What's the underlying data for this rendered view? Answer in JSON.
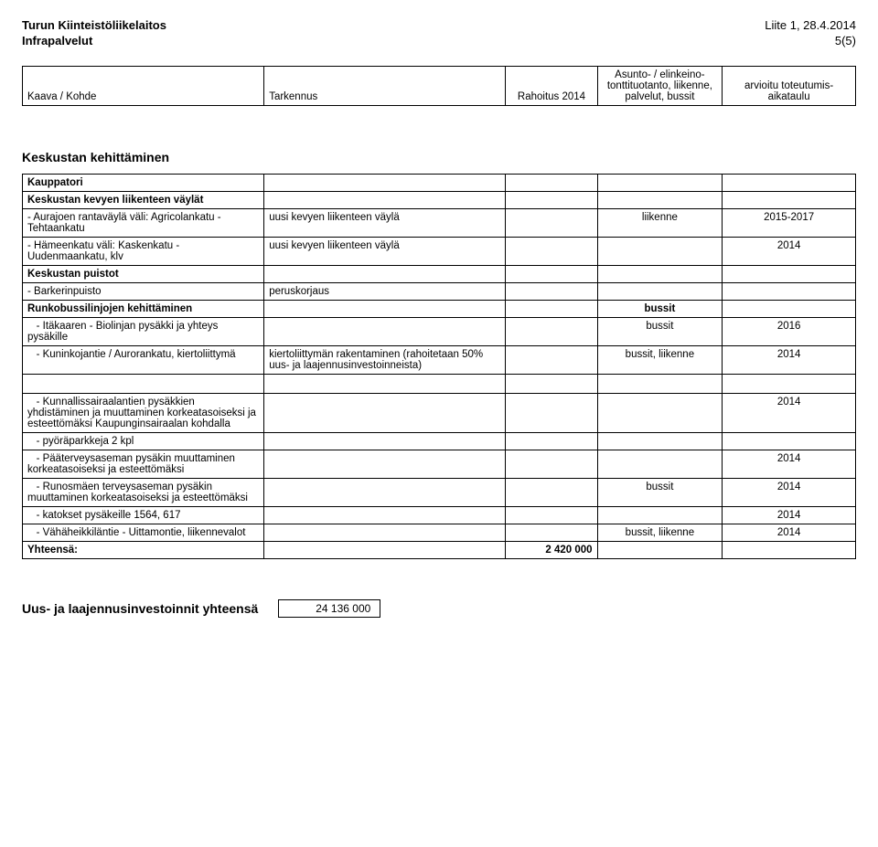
{
  "header": {
    "org1": "Turun Kiinteistöliikelaitos",
    "org2": "Infrapalvelut",
    "attachment": "Liite 1, 28.4.2014",
    "page": "5(5)"
  },
  "table_head": {
    "c1": "Kaava / Kohde",
    "c2": "Tarkennus",
    "c3": "Rahoitus 2014",
    "c4": "Asunto- / elinkeino-tonttituotanto, liikenne, palvelut, bussit",
    "c5": "arvioitu toteutumis-aikataulu"
  },
  "section1_title": "Keskustan kehittäminen",
  "rows": {
    "kauppatori": "Kauppatori",
    "kevyen_vaylat": "Keskustan kevyen liikenteen väylät",
    "aurajoen": "- Aurajoen rantaväylä väli: Agricolankatu - Tehtaankatu",
    "aurajoen_t": "uusi kevyen liikenteen väylä",
    "aurajoen_a": "liikenne",
    "aurajoen_v": "2015-2017",
    "hameenkatu": "- Hämeenkatu väli: Kaskenkatu - Uudenmaankatu, klv",
    "hameenkatu_t": "uusi kevyen liikenteen väylä",
    "hameenkatu_v": "2014",
    "puistot": "Keskustan puistot",
    "barker": "- Barkerinpuisto",
    "barker_t": "peruskorjaus",
    "runkobussi": "Runkobussilinjojen kehittäminen",
    "runkobussi_a": "bussit",
    "itakaaren": "   - Itäkaaren - Biolinjan pysäkki ja yhteys pysäkille",
    "itakaaren_a": "bussit",
    "itakaaren_v": "2016",
    "kuninkojantie": "   - Kuninkojantie / Aurorankatu, kiertoliittymä",
    "kuninkojantie_t": "kiertoliittymän rakentaminen (rahoitetaan 50% uus- ja laajennusinvestoinneista)",
    "kuninkojantie_a": "bussit, liikenne",
    "kuninkojantie_v": "2014",
    "kunnallis": "   - Kunnallissairaalantien pysäkkien yhdistäminen ja muuttaminen korkeatasoiseksi ja esteettömäksi Kaupunginsairaalan kohdalla",
    "kunnallis_v": "2014",
    "pyora": "   - pyöräparkkeja 2 kpl",
    "paaterveys": "   - Pääterveysaseman pysäkin muuttaminen korkeatasoiseksi ja esteettömäksi",
    "paaterveys_v": "2014",
    "runosmaen": "   - Runosmäen terveysaseman pysäkin muuttaminen korkeatasoiseksi ja esteettömäksi",
    "runosmaen_a": "bussit",
    "runosmaen_v": "2014",
    "katokset": "   - katokset pysäkeille 1564, 617",
    "katokset_v": "2014",
    "vahaheikki": "   - Vähäheikkiläntie - Uittamontie, liikennevalot",
    "vahaheikki_a": "bussit, liikenne",
    "vahaheikki_v": "2014",
    "yhteensa": "Yhteensä:",
    "yhteensa_val": "2 420 000"
  },
  "footer": {
    "label": "Uus- ja laajennusinvestoinnit yhteensä",
    "value": "24 136 000"
  }
}
